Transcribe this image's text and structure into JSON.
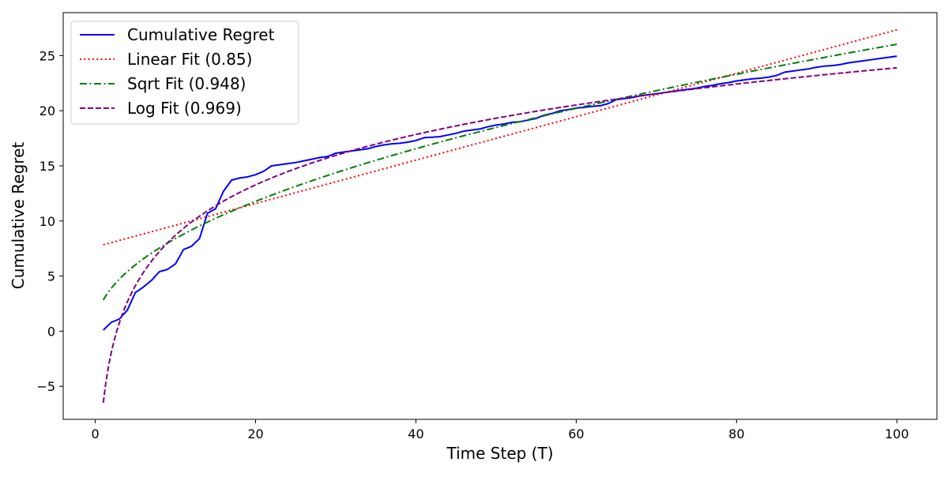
{
  "chart_data": {
    "type": "line",
    "title": "",
    "xlabel": "Time Step (T)",
    "ylabel": "Cumulative Regret",
    "xlim": [
      -4,
      105
    ],
    "ylim": [
      -8,
      28.9
    ],
    "xticks": [
      0,
      20,
      40,
      60,
      80,
      100
    ],
    "yticks": [
      -5,
      0,
      5,
      10,
      15,
      20,
      25
    ],
    "grid": false,
    "legend_position": "top-left",
    "series": [
      {
        "name": "Cumulative Regret",
        "kind": "data",
        "color": "#0000ff",
        "dash": "solid",
        "x": [
          1,
          2,
          3,
          4,
          5,
          6,
          7,
          8,
          9,
          10,
          11,
          12,
          13,
          14,
          15,
          16,
          17,
          18,
          19,
          20,
          21,
          22,
          23,
          24,
          25,
          26,
          27,
          28,
          29,
          30,
          31,
          32,
          33,
          34,
          35,
          36,
          37,
          38,
          39,
          40,
          41,
          42,
          43,
          44,
          45,
          46,
          47,
          48,
          49,
          50,
          51,
          52,
          53,
          54,
          55,
          56,
          57,
          58,
          59,
          60,
          61,
          62,
          63,
          64,
          65,
          66,
          67,
          68,
          69,
          70,
          71,
          72,
          73,
          74,
          75,
          76,
          77,
          78,
          79,
          80,
          81,
          82,
          83,
          84,
          85,
          86,
          87,
          88,
          89,
          90,
          91,
          92,
          93,
          94,
          95,
          96,
          97,
          98,
          99,
          100
        ],
        "y": [
          0.1,
          0.8,
          1.1,
          1.9,
          3.5,
          4.0,
          4.6,
          5.4,
          5.6,
          6.1,
          7.4,
          7.7,
          8.4,
          10.7,
          11.1,
          12.7,
          13.7,
          13.9,
          14.0,
          14.2,
          14.5,
          15.0,
          15.1,
          15.2,
          15.3,
          15.45,
          15.6,
          15.75,
          15.85,
          16.15,
          16.25,
          16.35,
          16.45,
          16.55,
          16.75,
          16.9,
          17.0,
          17.05,
          17.15,
          17.3,
          17.55,
          17.6,
          17.65,
          17.8,
          17.95,
          18.15,
          18.25,
          18.35,
          18.55,
          18.7,
          18.8,
          18.95,
          19.0,
          19.15,
          19.3,
          19.6,
          19.75,
          20.0,
          20.1,
          20.25,
          20.3,
          20.4,
          20.45,
          20.65,
          21.0,
          21.1,
          21.2,
          21.35,
          21.45,
          21.55,
          21.65,
          21.75,
          21.85,
          21.95,
          22.05,
          22.2,
          22.3,
          22.45,
          22.55,
          22.7,
          22.8,
          22.9,
          22.95,
          23.05,
          23.2,
          23.5,
          23.6,
          23.7,
          23.8,
          23.95,
          24.05,
          24.1,
          24.2,
          24.35,
          24.45,
          24.55,
          24.65,
          24.75,
          24.85,
          24.95
        ]
      },
      {
        "name": "Linear Fit (0.85)",
        "kind": "linear",
        "color": "#ff0000",
        "dash": "dotted",
        "coef": [
          0.197,
          7.64
        ]
      },
      {
        "name": "Sqrt Fit (0.948)",
        "kind": "sqrt",
        "color": "#008000",
        "dash": "dashdot",
        "coef": [
          2.578,
          0.25
        ]
      },
      {
        "name": "Log Fit (0.969)",
        "kind": "log",
        "color": "#800080",
        "dash": "dashed",
        "coef": [
          6.6,
          -6.5
        ]
      }
    ]
  }
}
